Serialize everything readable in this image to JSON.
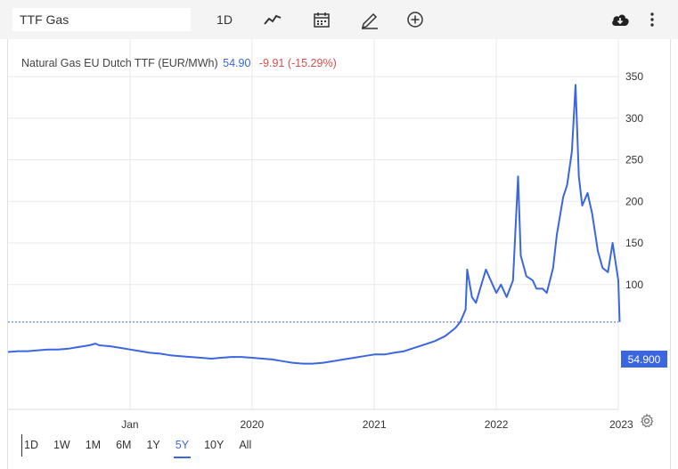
{
  "toolbar": {
    "search_value": "TTF Gas",
    "interval_label": "1D",
    "icons": [
      "line-chart-icon",
      "calendar-icon",
      "pencil-icon",
      "add-circle-icon",
      "cloud-download-icon",
      "more-vertical-icon"
    ]
  },
  "legend": {
    "name": "Natural Gas EU Dutch TTF (EUR/MWh)",
    "last": "54.90",
    "change": "-9.91 (-15.29%)"
  },
  "price_tag": "54.900",
  "colors": {
    "line": "#3a66e0",
    "negative": "#e04b4b",
    "grid": "#e8e8e8",
    "toolbar_bg": "#f4f4f4"
  },
  "ranges": [
    "1D",
    "1W",
    "1M",
    "6M",
    "1Y",
    "5Y",
    "10Y",
    "All"
  ],
  "active_range": "5Y",
  "chart_data": {
    "type": "line",
    "title": "Natural Gas EU Dutch TTF (EUR/MWh)",
    "xlabel": "",
    "ylabel": "",
    "y_ticks": [
      100,
      150,
      200,
      250,
      300,
      350
    ],
    "ylim": [
      -50,
      395
    ],
    "x_tick_labels": [
      "Jan",
      "2020",
      "2021",
      "2022",
      "2023"
    ],
    "x_tick_dates": [
      "2019-01",
      "2020-01",
      "2021-01",
      "2022-01",
      "2023-01"
    ],
    "xlim": [
      "2018-01",
      "2023-01"
    ],
    "last_value": 54.9,
    "series": [
      {
        "name": "",
        "x": [
          "2018-01",
          "2018-02",
          "2018-03",
          "2018-04",
          "2018-05",
          "2018-06",
          "2018-07",
          "2018-08",
          "2018-09",
          "2018-09-20",
          "2018-10",
          "2018-11",
          "2018-12",
          "2019-01",
          "2019-02",
          "2019-03",
          "2019-04",
          "2019-05",
          "2019-06",
          "2019-07",
          "2019-08",
          "2019-09",
          "2019-10",
          "2019-11",
          "2019-12",
          "2020-01",
          "2020-02",
          "2020-03",
          "2020-04",
          "2020-05",
          "2020-06",
          "2020-07",
          "2020-08",
          "2020-09",
          "2020-10",
          "2020-11",
          "2020-12",
          "2021-01",
          "2021-02",
          "2021-03",
          "2021-04",
          "2021-05",
          "2021-06",
          "2021-07",
          "2021-08",
          "2021-09",
          "2021-09-15",
          "2021-10-01",
          "2021-10-06",
          "2021-10-20",
          "2021-11",
          "2021-12-01",
          "2021-12-21",
          "2022-01-01",
          "2022-01-15",
          "2022-02",
          "2022-02-20",
          "2022-03-07",
          "2022-03-15",
          "2022-04",
          "2022-04-20",
          "2022-05",
          "2022-05-20",
          "2022-06",
          "2022-06-20",
          "2022-07",
          "2022-07-20",
          "2022-08-01",
          "2022-08-15",
          "2022-08-26",
          "2022-09-05",
          "2022-09-15",
          "2022-10-01",
          "2022-10-15",
          "2022-11-01",
          "2022-11-15",
          "2022-12-01",
          "2022-12-15",
          "2023-01-01",
          "2023-01-05"
        ],
        "values": [
          19,
          20,
          20,
          21,
          22,
          22,
          23,
          25,
          27,
          29,
          27,
          26,
          24,
          22,
          20,
          18,
          17,
          15,
          14,
          13,
          12,
          11,
          12,
          13,
          13,
          12,
          11,
          10,
          8,
          6,
          5,
          5,
          6,
          8,
          10,
          12,
          14,
          16,
          16,
          18,
          20,
          24,
          28,
          32,
          38,
          48,
          55,
          70,
          118,
          85,
          78,
          118,
          100,
          90,
          100,
          85,
          105,
          230,
          135,
          110,
          105,
          95,
          95,
          90,
          120,
          160,
          205,
          220,
          260,
          340,
          230,
          195,
          210,
          185,
          140,
          120,
          115,
          150,
          105,
          55
        ]
      }
    ]
  }
}
